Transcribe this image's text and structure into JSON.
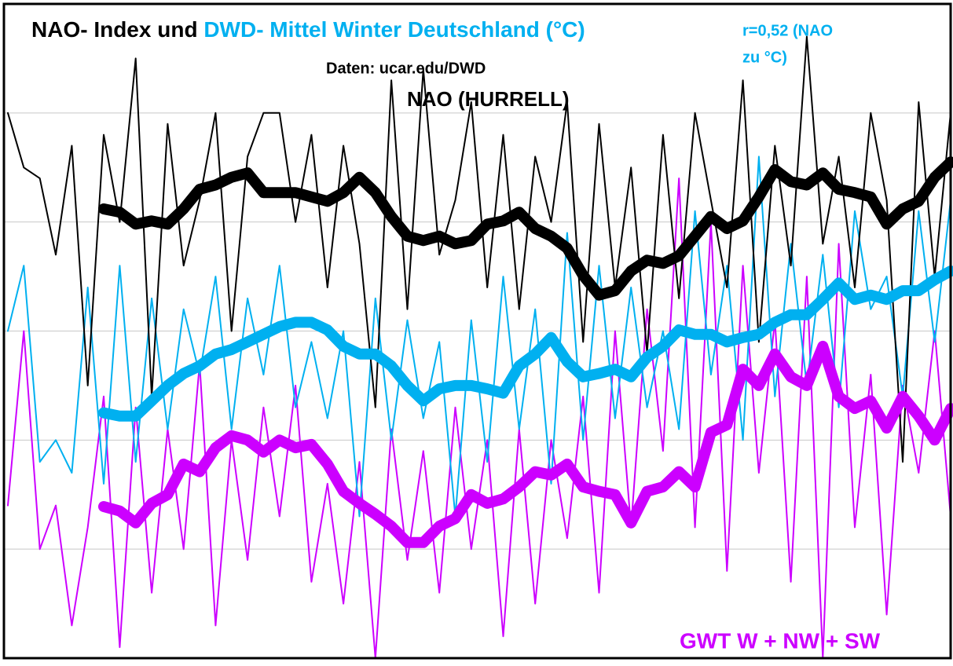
{
  "chart_data": {
    "type": "line",
    "title": [
      "NAO- Index und ",
      "DWD- Mittel Winter Deutschland (°C)"
    ],
    "title_colors": [
      "#000000",
      "#00b0f0"
    ],
    "annotations": [
      {
        "text": [
          "r=0,52 (NAO",
          "zu °C)"
        ],
        "color": "#00b0f0"
      },
      {
        "text": [
          "Daten: ucar.edu/DWD"
        ],
        "color": "#000000"
      },
      {
        "text": [
          "NAO (HURRELL)"
        ],
        "color": "#000000"
      },
      {
        "text": [
          "GWT W + NW + SW"
        ],
        "color": "#cc00ff"
      }
    ],
    "categories": [
      null,
      null,
      null,
      null,
      null,
      null,
      null,
      null,
      null,
      null,
      null,
      null,
      null,
      null,
      null,
      null,
      null,
      null,
      null,
      null,
      null,
      null,
      null,
      null,
      null,
      null,
      null,
      null,
      null,
      null,
      null,
      null,
      null,
      null,
      null,
      null,
      null,
      null,
      null,
      null,
      null,
      null,
      null,
      null,
      null,
      null,
      null,
      null,
      null,
      null,
      null,
      null,
      null,
      null,
      null,
      null,
      null,
      null,
      null,
      null
    ],
    "ylim": [
      0,
      6
    ],
    "yticks": [
      1,
      2,
      3,
      4,
      5
    ],
    "grid": true,
    "series": [
      {
        "color": "#cc00ff",
        "width": 2,
        "values": [
          1.4,
          3.0,
          1.0,
          1.4,
          0.3,
          1.2,
          2.4,
          0.1,
          2.3,
          0.6,
          2.1,
          1.0,
          2.7,
          0.3,
          2.0,
          0.9,
          2.3,
          1.3,
          2.5,
          0.7,
          1.6,
          0.5,
          1.8,
          0.0,
          2.1,
          0.9,
          1.9,
          0.6,
          2.3,
          1.0,
          2.0,
          0.2,
          2.1,
          0.5,
          2.0,
          1.1,
          2.4,
          0.6,
          3.0,
          1.2,
          3.2,
          1.9,
          4.4,
          1.2,
          4.0,
          0.8,
          3.6,
          1.7,
          3.1,
          0.7,
          3.5,
          0.0,
          3.8,
          1.2,
          2.6,
          0.4,
          2.5,
          1.7,
          3.0,
          1.3
        ]
      },
      {
        "color": "#00b0f0",
        "width": 2,
        "values": [
          3.0,
          3.6,
          1.8,
          2.0,
          1.7,
          3.4,
          1.6,
          3.6,
          1.8,
          3.3,
          2.1,
          3.2,
          2.6,
          3.5,
          2.1,
          3.3,
          2.6,
          3.6,
          2.3,
          2.9,
          2.2,
          3.0,
          1.3,
          3.3,
          2.0,
          3.1,
          2.2,
          2.9,
          1.3,
          3.1,
          1.8,
          3.5,
          2.1,
          3.2,
          1.6,
          3.9,
          2.0,
          3.6,
          2.2,
          3.4,
          2.3,
          3.0,
          2.1,
          4.1,
          2.6,
          3.6,
          2.0,
          4.6,
          2.4,
          3.8,
          2.5,
          3.7,
          2.3,
          4.1,
          3.2,
          3.5,
          2.4,
          4.1,
          2.9,
          4.2
        ]
      },
      {
        "color": "#000000",
        "width": 2,
        "values": [
          5.0,
          4.5,
          4.4,
          3.7,
          4.7,
          2.5,
          4.8,
          4.0,
          5.5,
          2.4,
          4.9,
          3.6,
          4.2,
          5.0,
          3.0,
          4.6,
          5.0,
          5.0,
          4.0,
          4.8,
          3.4,
          4.7,
          3.8,
          2.3,
          5.3,
          3.2,
          5.4,
          3.7,
          4.2,
          5.1,
          3.4,
          4.8,
          3.2,
          4.6,
          4.0,
          5.1,
          2.9,
          4.9,
          3.4,
          4.5,
          2.8,
          4.8,
          3.3,
          5.0,
          4.2,
          3.4,
          5.3,
          2.9,
          4.7,
          3.6,
          5.7,
          3.8,
          4.6,
          3.4,
          5.0,
          4.2,
          1.8,
          5.1,
          3.5,
          5.0
        ]
      },
      {
        "color": "#cc00ff",
        "width": 14,
        "values": [
          null,
          null,
          null,
          null,
          null,
          null,
          1.39,
          1.35,
          1.24,
          1.42,
          1.5,
          1.78,
          1.71,
          1.93,
          2.04,
          2.0,
          1.89,
          2.0,
          1.93,
          1.96,
          1.78,
          1.53,
          1.42,
          1.32,
          1.21,
          1.06,
          1.06,
          1.21,
          1.28,
          1.5,
          1.42,
          1.46,
          1.57,
          1.71,
          1.68,
          1.78,
          1.57,
          1.53,
          1.5,
          1.24,
          1.53,
          1.57,
          1.71,
          1.57,
          2.07,
          2.14,
          2.65,
          2.5,
          2.79,
          2.58,
          2.5,
          2.86,
          2.4,
          2.29,
          2.36,
          2.11,
          2.4,
          2.22,
          2.0,
          2.29
        ]
      },
      {
        "color": "#00b0f0",
        "width": 14,
        "values": [
          null,
          null,
          null,
          null,
          null,
          null,
          2.25,
          2.22,
          2.22,
          2.36,
          2.5,
          2.61,
          2.68,
          2.79,
          2.83,
          2.9,
          2.97,
          3.04,
          3.08,
          3.08,
          3.01,
          2.86,
          2.79,
          2.79,
          2.68,
          2.5,
          2.36,
          2.47,
          2.5,
          2.5,
          2.47,
          2.43,
          2.68,
          2.79,
          2.94,
          2.72,
          2.58,
          2.61,
          2.65,
          2.58,
          2.76,
          2.86,
          3.01,
          2.97,
          2.97,
          2.9,
          2.94,
          2.97,
          3.08,
          3.15,
          3.15,
          3.29,
          3.44,
          3.29,
          3.33,
          3.29,
          3.37,
          3.37,
          3.47,
          3.55
        ]
      },
      {
        "color": "#000000",
        "width": 14,
        "values": [
          null,
          null,
          null,
          null,
          null,
          null,
          4.12,
          4.09,
          3.98,
          4.01,
          3.98,
          4.12,
          4.3,
          4.34,
          4.41,
          4.45,
          4.27,
          4.27,
          4.27,
          4.23,
          4.19,
          4.27,
          4.41,
          4.27,
          4.05,
          3.87,
          3.83,
          3.87,
          3.8,
          3.83,
          3.98,
          4.01,
          4.09,
          3.94,
          3.87,
          3.76,
          3.51,
          3.33,
          3.37,
          3.55,
          3.65,
          3.62,
          3.69,
          3.87,
          4.05,
          3.94,
          4.01,
          4.23,
          4.48,
          4.37,
          4.34,
          4.45,
          4.3,
          4.27,
          4.23,
          3.98,
          4.12,
          4.19,
          4.41,
          4.55
        ]
      }
    ]
  }
}
